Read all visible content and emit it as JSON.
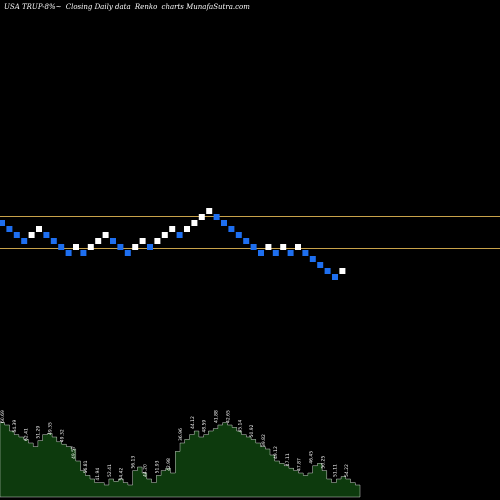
{
  "header": {
    "symbol": "USA TRUP-8%~",
    "chart_kind": "Closing Daily data",
    "renko_label": "Renko",
    "site": "charts MunafaSutra.com"
  },
  "colors": {
    "background": "#000000",
    "up_brick": "#ffffff",
    "down_brick": "#1e6ff0",
    "level_line": "#c8a24a",
    "volume_fill": "#0d3a0d",
    "volume_edge": "#ffffff"
  },
  "chart_data": {
    "type": "renko",
    "levels": [
      20.2,
      18.85
    ],
    "bricks": [
      {
        "d": "down",
        "v": 20.2
      },
      {
        "d": "down",
        "v": 19.95
      },
      {
        "d": "down",
        "v": 19.7
      },
      {
        "d": "down",
        "v": 19.45
      },
      {
        "d": "up",
        "v": 19.7
      },
      {
        "d": "up",
        "v": 19.95
      },
      {
        "d": "down",
        "v": 19.7
      },
      {
        "d": "down",
        "v": 19.45
      },
      {
        "d": "down",
        "v": 19.2
      },
      {
        "d": "down",
        "v": 18.95
      },
      {
        "d": "up",
        "v": 19.2
      },
      {
        "d": "down",
        "v": 18.95
      },
      {
        "d": "up",
        "v": 19.2
      },
      {
        "d": "up",
        "v": 19.45
      },
      {
        "d": "up",
        "v": 19.7
      },
      {
        "d": "down",
        "v": 19.45
      },
      {
        "d": "down",
        "v": 19.2
      },
      {
        "d": "down",
        "v": 18.95
      },
      {
        "d": "up",
        "v": 19.2
      },
      {
        "d": "up",
        "v": 19.45
      },
      {
        "d": "down",
        "v": 19.2
      },
      {
        "d": "up",
        "v": 19.45
      },
      {
        "d": "up",
        "v": 19.7
      },
      {
        "d": "up",
        "v": 19.95
      },
      {
        "d": "down",
        "v": 19.7
      },
      {
        "d": "up",
        "v": 19.95
      },
      {
        "d": "up",
        "v": 20.2
      },
      {
        "d": "up",
        "v": 20.45
      },
      {
        "d": "up",
        "v": 20.7
      },
      {
        "d": "down",
        "v": 20.45
      },
      {
        "d": "down",
        "v": 20.2
      },
      {
        "d": "down",
        "v": 19.95
      },
      {
        "d": "down",
        "v": 19.7
      },
      {
        "d": "down",
        "v": 19.45
      },
      {
        "d": "down",
        "v": 19.2
      },
      {
        "d": "down",
        "v": 18.95
      },
      {
        "d": "up",
        "v": 19.2
      },
      {
        "d": "down",
        "v": 18.95
      },
      {
        "d": "up",
        "v": 19.2
      },
      {
        "d": "down",
        "v": 18.95
      },
      {
        "d": "up",
        "v": 19.2
      },
      {
        "d": "down",
        "v": 18.95
      },
      {
        "d": "down",
        "v": 18.7
      },
      {
        "d": "down",
        "v": 18.45
      },
      {
        "d": "down",
        "v": 18.2
      },
      {
        "d": "down",
        "v": 17.95
      },
      {
        "d": "up",
        "v": 18.2
      }
    ],
    "volume": {
      "values": [
        62,
        60,
        55,
        52,
        50,
        48,
        45,
        42,
        47,
        52,
        53,
        50,
        46,
        44,
        42,
        40,
        30,
        22,
        18,
        15,
        12,
        12,
        10,
        15,
        13,
        15,
        12,
        10,
        22,
        25,
        20,
        15,
        12,
        18,
        22,
        24,
        20,
        38,
        45,
        48,
        52,
        55,
        50,
        52,
        55,
        57,
        60,
        62,
        60,
        58,
        55,
        52,
        50,
        48,
        45,
        42,
        40,
        35,
        30,
        28,
        26,
        24,
        22,
        20,
        18,
        20,
        26,
        28,
        22,
        15,
        12,
        15,
        17,
        15,
        12,
        10
      ],
      "labels": [
        "60.69",
        "54.39",
        "62.41",
        "51.29",
        "49.35",
        "49.32",
        "49.57",
        "56.81",
        "41.94",
        "52.41",
        "54.42",
        "56.13",
        "44.20",
        "51.93",
        "42.98",
        "36.96",
        "44.12",
        "48.59",
        "41.88",
        "42.65",
        "45.14",
        "50.92",
        "39.82",
        "49.12",
        "47.11",
        "47.87",
        "46.45",
        "50.25",
        "51.11",
        "54.22"
      ]
    }
  }
}
